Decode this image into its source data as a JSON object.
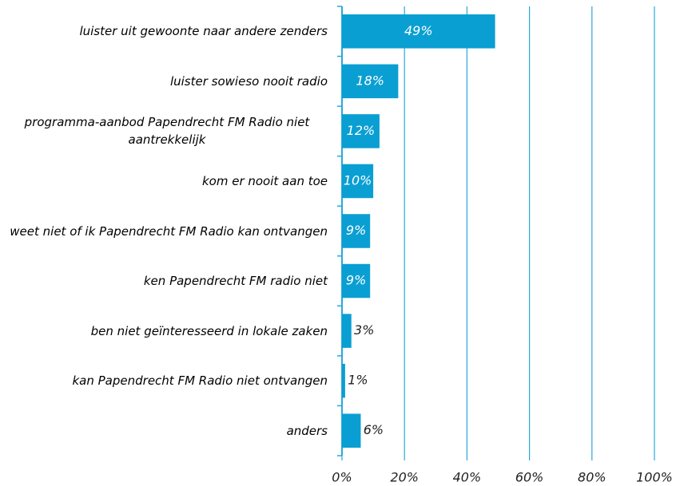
{
  "chart_data": {
    "type": "bar",
    "orientation": "horizontal",
    "categories": [
      "luister uit gewoonte naar andere zenders",
      "luister sowieso nooit radio",
      "programma-aanbod Papendrecht FM Radio niet aantrekkelijk",
      "kom er nooit aan toe",
      "weet niet of ik Papendrecht FM Radio kan ontvangen",
      "ken Papendrecht FM radio niet",
      "ben niet geïnteresseerd in lokale zaken",
      "kan Papendrecht FM Radio niet ontvangen",
      "anders"
    ],
    "values": [
      49,
      18,
      12,
      10,
      9,
      9,
      3,
      1,
      6
    ],
    "value_labels": [
      "49%",
      "18%",
      "12%",
      "10%",
      "9%",
      "9%",
      "3%",
      "1%",
      "6%"
    ],
    "color": "#0a9fd2",
    "xlim": [
      0,
      100
    ],
    "xticks": [
      {
        "value": 0,
        "label": "0%"
      },
      {
        "value": 20,
        "label": "20%"
      },
      {
        "value": 40,
        "label": "40%"
      },
      {
        "value": 60,
        "label": "60%"
      },
      {
        "value": 80,
        "label": "80%"
      },
      {
        "value": 100,
        "label": "100%"
      }
    ],
    "grid": true
  }
}
